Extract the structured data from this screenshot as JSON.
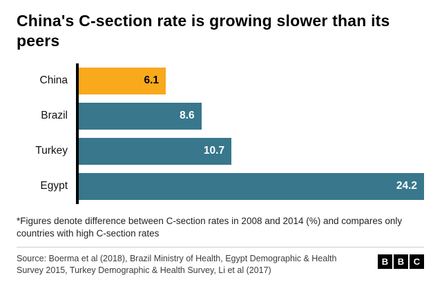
{
  "title": "China's C-section rate is growing slower than its peers",
  "chart_data": {
    "type": "bar",
    "orientation": "horizontal",
    "categories": [
      "China",
      "Brazil",
      "Turkey",
      "Egypt"
    ],
    "values": [
      6.1,
      8.6,
      10.7,
      24.2
    ],
    "value_labels": [
      "6.1",
      "8.6",
      "10.7",
      "24.2"
    ],
    "xlim": [
      0,
      24.2
    ],
    "bar_colors": [
      "#f8a91c",
      "#38778c",
      "#38778c",
      "#38778c"
    ],
    "value_label_colors": [
      "#000000",
      "#ffffff",
      "#ffffff",
      "#ffffff"
    ],
    "highlight_color": "#f8a91c",
    "default_color": "#38778c",
    "axis_color": "#000000",
    "grid": "off",
    "legend": "none",
    "title": "China's C-section rate is growing slower than its peers"
  },
  "footnote": "*Figures denote difference between C-section rates in 2008 and 2014 (%) and compares only countries with high C-section rates",
  "source": "Source: Boerma et al (2018), Brazil Ministry of Health, Egypt Demographic & Health Survey 2015, Turkey Demographic & Health Survey, Li et al (2017)",
  "logo": {
    "letters": [
      "B",
      "B",
      "C"
    ]
  }
}
